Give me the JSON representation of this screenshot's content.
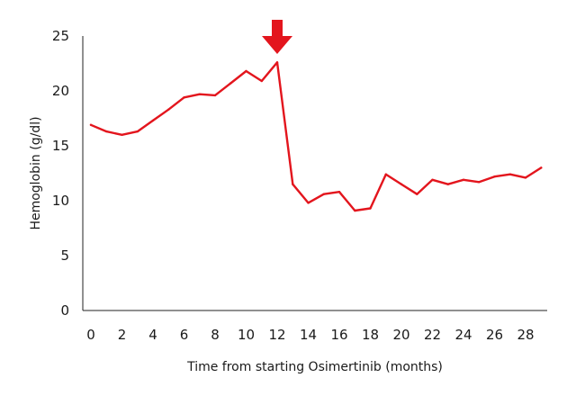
{
  "chart_data": {
    "type": "line",
    "xlabel": "Time from starting Osimertinib (months)",
    "ylabel": "Hemoglobin (g/dl)",
    "xlim": [
      0,
      29
    ],
    "ylim": [
      0,
      25
    ],
    "xticks": [
      0,
      2,
      4,
      6,
      8,
      10,
      12,
      14,
      16,
      18,
      20,
      22,
      24,
      26,
      28
    ],
    "yticks": [
      0,
      5,
      10,
      15,
      20,
      25
    ],
    "grid": false,
    "line_color": "#e3151d",
    "marker": {
      "type": "down-arrow",
      "x": 12,
      "color": "#e3151d"
    },
    "series": [
      {
        "x": [
          0,
          1,
          2,
          3,
          4,
          5,
          6,
          7,
          8,
          9,
          10,
          11,
          12,
          13,
          14,
          15,
          16,
          17,
          18,
          19,
          20,
          21,
          22,
          23,
          24,
          25,
          26,
          27,
          28,
          29
        ],
        "values": [
          16.9,
          16.3,
          16.0,
          16.3,
          17.3,
          18.3,
          19.4,
          19.7,
          19.6,
          20.7,
          21.8,
          20.9,
          22.6,
          11.5,
          9.8,
          10.6,
          10.8,
          9.1,
          9.3,
          12.4,
          11.5,
          10.6,
          11.9,
          11.5,
          11.9,
          11.7,
          12.2,
          12.4,
          12.1,
          13.0
        ]
      }
    ]
  }
}
